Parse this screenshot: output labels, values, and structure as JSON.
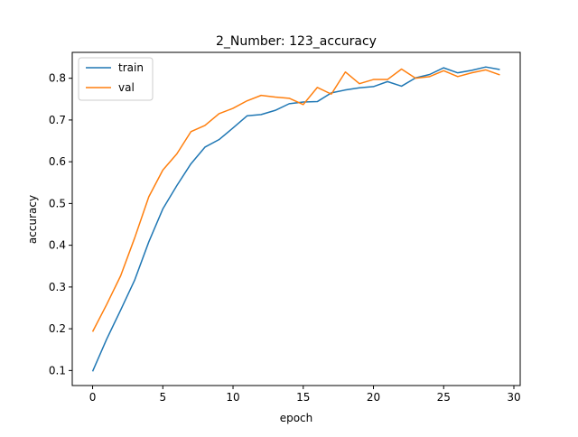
{
  "colors": {
    "train": "#1f77b4",
    "val": "#ff7f0e",
    "axes": "#000000",
    "background": "#ffffff"
  },
  "chart_data": {
    "type": "line",
    "title": "2_Number: 123_accuracy",
    "xlabel": "epoch",
    "ylabel": "accuracy",
    "xlim": [
      -1.45,
      30.45
    ],
    "ylim": [
      0.064,
      0.862
    ],
    "xticks": [
      0,
      5,
      10,
      15,
      20,
      25,
      30
    ],
    "yticks": [
      0.1,
      0.2,
      0.3,
      0.4,
      0.5,
      0.6,
      0.7,
      0.8
    ],
    "xtick_labels": [
      "0",
      "5",
      "10",
      "15",
      "20",
      "25",
      "30"
    ],
    "ytick_labels": [
      "0.1",
      "0.2",
      "0.3",
      "0.4",
      "0.5",
      "0.6",
      "0.7",
      "0.8"
    ],
    "grid": false,
    "legend_position": "upper left",
    "x": [
      0,
      1,
      2,
      3,
      4,
      5,
      6,
      7,
      8,
      9,
      10,
      11,
      12,
      13,
      14,
      15,
      16,
      17,
      18,
      19,
      20,
      21,
      22,
      23,
      24,
      25,
      26,
      27,
      28,
      29
    ],
    "series": [
      {
        "name": "train",
        "color_key": "train",
        "values": [
          0.098,
          0.175,
          0.245,
          0.317,
          0.408,
          0.487,
          0.543,
          0.595,
          0.635,
          0.653,
          0.681,
          0.71,
          0.713,
          0.723,
          0.739,
          0.743,
          0.744,
          0.765,
          0.772,
          0.777,
          0.78,
          0.792,
          0.781,
          0.801,
          0.809,
          0.825,
          0.813,
          0.819,
          0.827,
          0.821
        ]
      },
      {
        "name": "val",
        "color_key": "val",
        "values": [
          0.193,
          0.258,
          0.327,
          0.418,
          0.516,
          0.58,
          0.619,
          0.672,
          0.687,
          0.715,
          0.728,
          0.746,
          0.759,
          0.755,
          0.752,
          0.737,
          0.778,
          0.762,
          0.815,
          0.787,
          0.797,
          0.797,
          0.822,
          0.8,
          0.804,
          0.818,
          0.804,
          0.813,
          0.82,
          0.808
        ]
      }
    ]
  }
}
